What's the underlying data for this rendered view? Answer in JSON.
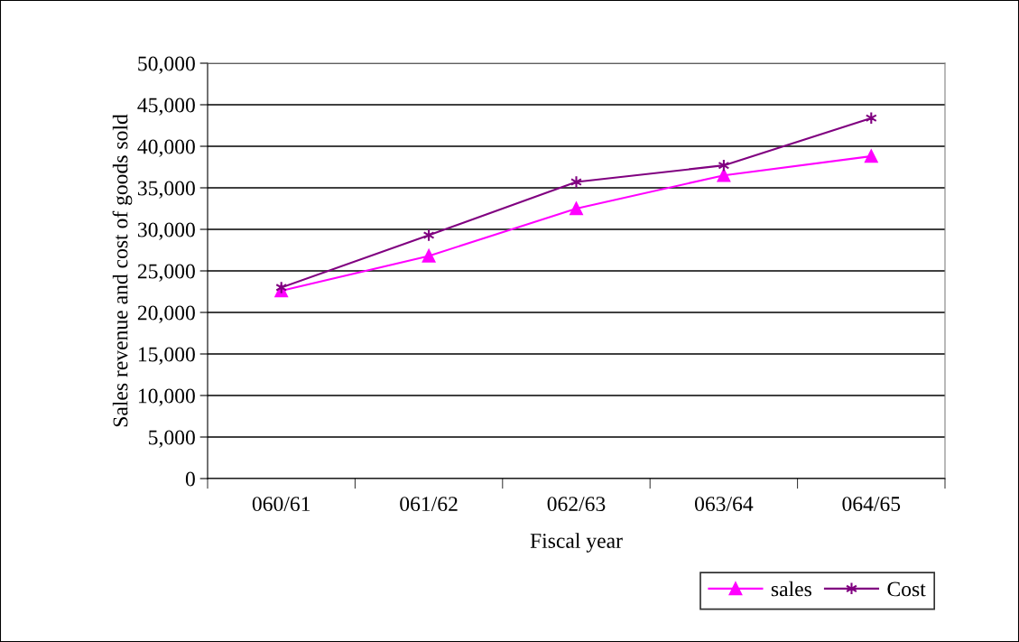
{
  "chart_data": {
    "type": "line",
    "xlabel": "Fiscal year",
    "ylabel": "Sales revenue and cost of goods sold",
    "categories": [
      "060/61",
      "061/62",
      "062/63",
      "063/64",
      "064/65"
    ],
    "series": [
      {
        "name": "sales",
        "color": "#ff00ff",
        "marker": "triangle",
        "values": [
          22600,
          26800,
          32500,
          36500,
          38800
        ]
      },
      {
        "name": "Cost",
        "color": "#800080",
        "marker": "cross",
        "values": [
          23000,
          29300,
          35700,
          37700,
          43400
        ]
      }
    ],
    "ylim": [
      0,
      50000
    ],
    "yticks": [
      {
        "value": 0,
        "label": "0"
      },
      {
        "value": 5000,
        "label": "5,000"
      },
      {
        "value": 10000,
        "label": "10,000"
      },
      {
        "value": 15000,
        "label": "15,000"
      },
      {
        "value": 20000,
        "label": "20,000"
      },
      {
        "value": 25000,
        "label": "25,000"
      },
      {
        "value": 30000,
        "label": "30,000"
      },
      {
        "value": 35000,
        "label": "35,000"
      },
      {
        "value": 40000,
        "label": "40,000"
      },
      {
        "value": 45000,
        "label": "45,000"
      },
      {
        "value": 50000,
        "label": "50,000"
      }
    ],
    "grid": "y",
    "legend": "bottom right",
    "line_style": "solid"
  }
}
